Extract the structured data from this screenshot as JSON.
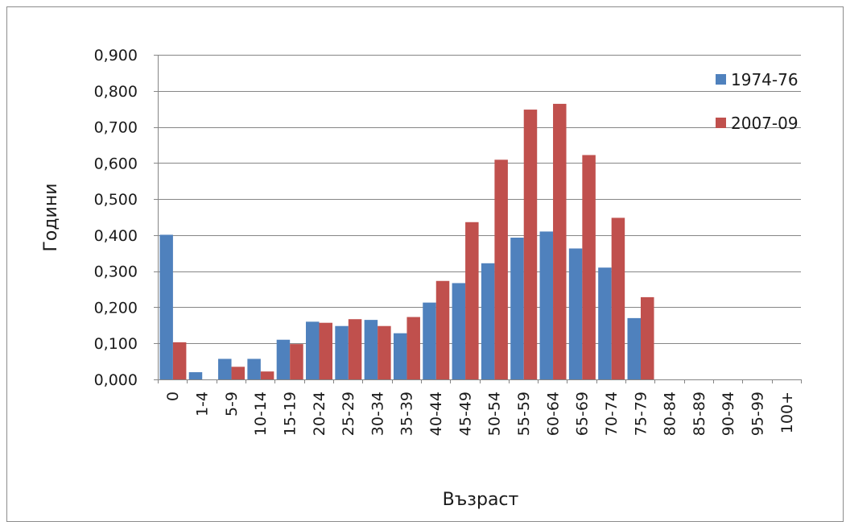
{
  "chart_data": {
    "type": "bar",
    "title": "",
    "xlabel": "Възраст",
    "ylabel": "Години",
    "ylim": [
      0,
      0.9
    ],
    "ytick_step": 0.1,
    "ytick_labels": [
      "0,000",
      "0,100",
      "0,200",
      "0,300",
      "0,400",
      "0,500",
      "0,600",
      "0,700",
      "0,800",
      "0,900"
    ],
    "grid": true,
    "legend_position": "top-right",
    "categories": [
      "0",
      "1-4",
      "5-9",
      "10-14",
      "15-19",
      "20-24",
      "25-29",
      "30-34",
      "35-39",
      "40-44",
      "45-49",
      "50-54",
      "55-59",
      "60-64",
      "65-69",
      "70-74",
      "75-79",
      "80-84",
      "85-89",
      "90-94",
      "95-99",
      "100+"
    ],
    "series": [
      {
        "name": "1974-76",
        "color": "#4f81bd",
        "values": [
          0.401,
          0.02,
          0.057,
          0.057,
          0.11,
          0.16,
          0.148,
          0.165,
          0.128,
          0.213,
          0.267,
          0.322,
          0.393,
          0.41,
          0.363,
          0.31,
          0.17,
          0,
          0,
          0,
          0,
          0
        ]
      },
      {
        "name": "2007-09",
        "color": "#c0504d",
        "values": [
          0.103,
          0,
          0.035,
          0.022,
          0.098,
          0.157,
          0.167,
          0.148,
          0.173,
          0.273,
          0.436,
          0.609,
          0.748,
          0.764,
          0.622,
          0.448,
          0.228,
          0,
          0,
          0,
          0,
          0
        ]
      }
    ]
  }
}
